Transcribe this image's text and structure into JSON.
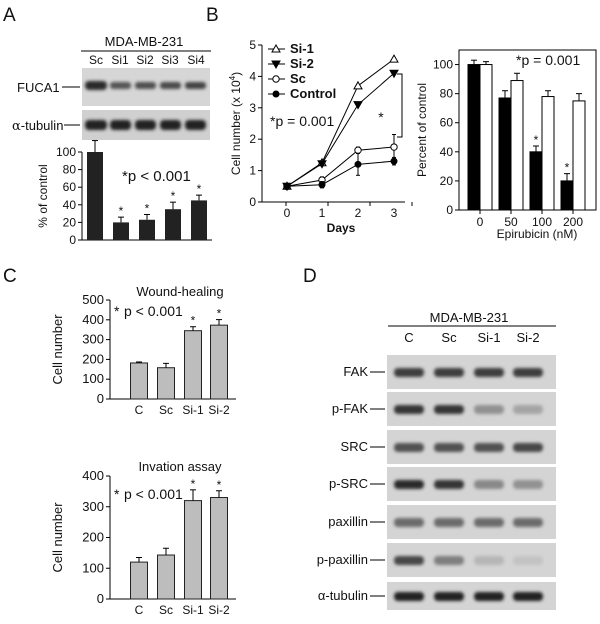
{
  "panel_labels": {
    "A": "A",
    "B": "B",
    "C": "C",
    "D": "D"
  },
  "panel_a": {
    "cell_line": "MDA-MB-231",
    "lanes": [
      "Sc",
      "Si1",
      "Si2",
      "Si3",
      "Si4"
    ],
    "blot_rows": [
      "FUCA1",
      "α-tubulin"
    ],
    "row_label_fuca1": "FUCA1",
    "row_label_tubulin_greek": "α",
    "row_label_tubulin_rest": "-tubulin",
    "p_text": "*p < 0.001",
    "star": "*"
  },
  "panel_b": {
    "days_label": "Days",
    "epi_label": "Epirubicin (nM)",
    "p_left": "*p = 0.001",
    "p_right": "*p = 0.001",
    "star": "*"
  },
  "panel_c": {
    "star": "*",
    "p_text": "p < 0.001"
  },
  "panel_d": {
    "cell_line": "MDA-MB-231",
    "lanes": [
      "C",
      "Sc",
      "Si-1",
      "Si-2"
    ],
    "rows": [
      "FAK",
      "p-FAK",
      "SRC",
      "p-SRC",
      "paxillin",
      "p-paxillin",
      "α-tubulin"
    ],
    "intensities": [
      [
        0.8,
        0.8,
        0.8,
        0.8
      ],
      [
        0.85,
        0.85,
        0.35,
        0.25
      ],
      [
        0.7,
        0.7,
        0.7,
        0.75
      ],
      [
        0.9,
        0.85,
        0.4,
        0.35
      ],
      [
        0.55,
        0.55,
        0.55,
        0.55
      ],
      [
        0.75,
        0.45,
        0.15,
        0.08
      ],
      [
        0.95,
        0.95,
        0.95,
        0.95
      ]
    ]
  },
  "chart_data": [
    {
      "type": "bar",
      "categories": [
        "Sc",
        "Si1",
        "Si2",
        "Si3",
        "Si4"
      ],
      "values": [
        100,
        20,
        23,
        35,
        45
      ],
      "errors": [
        13,
        6,
        6,
        8,
        6
      ],
      "significant": [
        false,
        true,
        true,
        true,
        true
      ],
      "ylabel": "% of control",
      "ylim": [
        0,
        100
      ],
      "yticks": [
        0,
        20,
        40,
        60,
        80,
        100
      ],
      "annotation": "*p < 0.001"
    },
    {
      "type": "line",
      "x": [
        0,
        1,
        2,
        3
      ],
      "xticks": [
        0,
        1,
        2,
        3
      ],
      "xlabel": "Days",
      "ylabel": "Cell number (x 10",
      "ylabel_sup": "4",
      "ylabel_close": ")",
      "ylim": [
        0,
        5
      ],
      "yticks": [
        0,
        1,
        2,
        3,
        4,
        5
      ],
      "series": [
        {
          "name": "Si-1",
          "values": [
            0.5,
            1.25,
            3.7,
            4.55
          ],
          "errors": [
            0.05,
            0.05,
            0.05,
            0.05
          ],
          "marker": "triangle-open"
        },
        {
          "name": "Si-2",
          "values": [
            0.5,
            1.22,
            3.1,
            4.1
          ],
          "errors": [
            0.05,
            0.05,
            0.05,
            0.05
          ],
          "marker": "triangle-filled"
        },
        {
          "name": "Sc",
          "values": [
            0.5,
            0.7,
            1.65,
            1.75
          ],
          "errors": [
            0.05,
            0.1,
            0.1,
            0.4
          ],
          "marker": "circle-open"
        },
        {
          "name": "Control",
          "values": [
            0.5,
            0.55,
            1.2,
            1.3
          ],
          "errors": [
            0.05,
            0.1,
            0.35,
            0.12
          ],
          "marker": "circle-filled"
        }
      ],
      "annotation": "*p = 0.001"
    },
    {
      "type": "bar",
      "categories": [
        "0",
        "50",
        "100",
        "200"
      ],
      "xlabel": "Epirubicin (nM)",
      "ylabel": "Percent of control",
      "ylim": [
        0,
        110
      ],
      "yticks": [
        0,
        20,
        40,
        60,
        80,
        100
      ],
      "series": [
        {
          "color": "#000000",
          "values": [
            100,
            77,
            40,
            20
          ],
          "errors": [
            3,
            5,
            4,
            5
          ],
          "significant": [
            false,
            false,
            true,
            true
          ]
        },
        {
          "color": "#ffffff",
          "values": [
            100,
            89,
            78,
            75
          ],
          "errors": [
            2,
            5,
            4,
            5
          ]
        }
      ],
      "annotation": "*p = 0.001"
    },
    {
      "type": "bar",
      "title": "Wound-healing",
      "categories": [
        "C",
        "Sc",
        "Si-1",
        "Si-2"
      ],
      "values": [
        182,
        158,
        345,
        373
      ],
      "errors": [
        5,
        22,
        20,
        28
      ],
      "significant": [
        false,
        false,
        true,
        true
      ],
      "ylabel": "Cell number",
      "ylim": [
        0,
        500
      ],
      "yticks": [
        0,
        100,
        200,
        300,
        400,
        500
      ],
      "annotation": "p < 0.001"
    },
    {
      "type": "bar",
      "title": "Invation assay",
      "categories": [
        "C",
        "Sc",
        "Si-1",
        "Si-2"
      ],
      "values": [
        120,
        143,
        320,
        330
      ],
      "errors": [
        15,
        22,
        35,
        22
      ],
      "significant": [
        false,
        false,
        true,
        true
      ],
      "ylabel": "Cell number",
      "ylim": [
        0,
        400
      ],
      "yticks": [
        0,
        100,
        200,
        300,
        400
      ],
      "annotation": "p < 0.001"
    }
  ]
}
